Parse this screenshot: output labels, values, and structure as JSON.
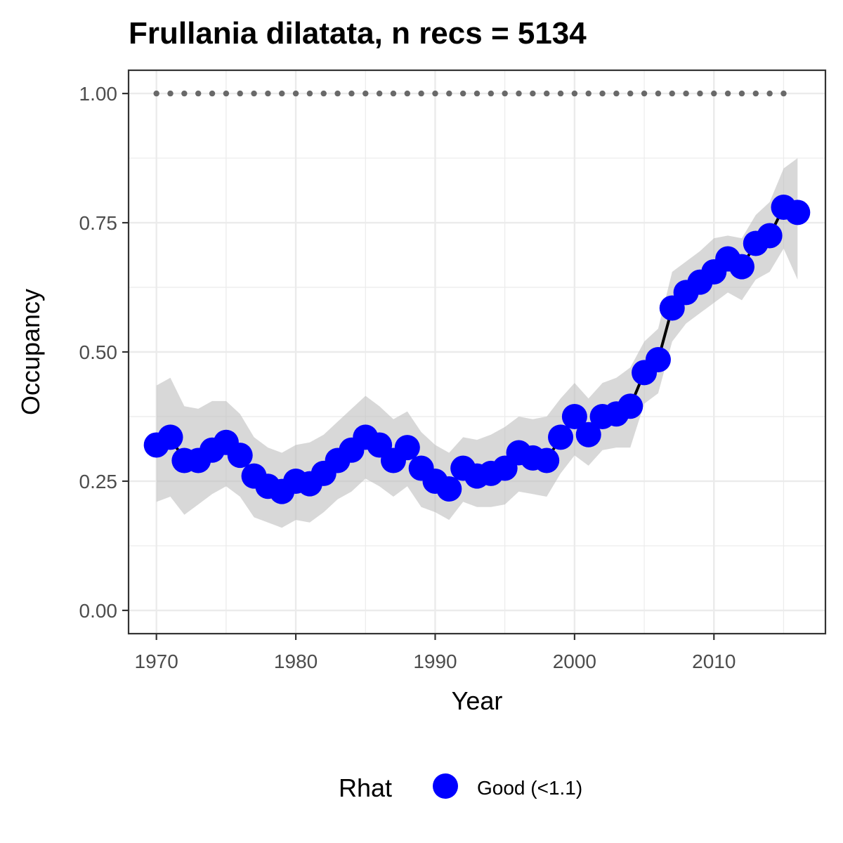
{
  "chart_data": {
    "type": "line",
    "title": "Frullania dilatata, n recs = 5134",
    "xlabel": "Year",
    "ylabel": "Occupancy",
    "xlim": [
      1968,
      2018
    ],
    "ylim": [
      -0.045,
      1.045
    ],
    "x_ticks": [
      1970,
      1980,
      1990,
      2000,
      2010
    ],
    "x_tick_labels": [
      "1970",
      "1980",
      "1990",
      "2000",
      "2010"
    ],
    "y_ticks": [
      0,
      0.25,
      0.5,
      0.75,
      1.0
    ],
    "y_tick_labels": [
      "0.00",
      "0.25",
      "0.50",
      "0.75",
      "1.00"
    ],
    "grid": true,
    "x": [
      1970,
      1971,
      1972,
      1973,
      1974,
      1975,
      1976,
      1977,
      1978,
      1979,
      1980,
      1981,
      1982,
      1983,
      1984,
      1985,
      1986,
      1987,
      1988,
      1989,
      1990,
      1991,
      1992,
      1993,
      1994,
      1995,
      1996,
      1997,
      1998,
      1999,
      2000,
      2001,
      2002,
      2003,
      2004,
      2005,
      2006,
      2007,
      2008,
      2009,
      2010,
      2011,
      2012,
      2013,
      2014,
      2015,
      2016
    ],
    "series": [
      {
        "values": [
          0.32,
          0.335,
          0.29,
          0.29,
          0.31,
          0.325,
          0.3,
          0.26,
          0.24,
          0.23,
          0.25,
          0.245,
          0.265,
          0.29,
          0.31,
          0.335,
          0.32,
          0.29,
          0.315,
          0.275,
          0.25,
          0.235,
          0.275,
          0.26,
          0.265,
          0.275,
          0.305,
          0.295,
          0.29,
          0.335,
          0.375,
          0.34,
          0.375,
          0.38,
          0.395,
          0.46,
          0.485,
          0.585,
          0.615,
          0.635,
          0.655,
          0.68,
          0.665,
          0.71,
          0.725,
          0.78,
          0.77
        ],
        "lower": [
          0.21,
          0.22,
          0.185,
          0.205,
          0.225,
          0.24,
          0.22,
          0.18,
          0.17,
          0.16,
          0.175,
          0.17,
          0.19,
          0.215,
          0.23,
          0.255,
          0.24,
          0.22,
          0.24,
          0.2,
          0.19,
          0.175,
          0.21,
          0.2,
          0.2,
          0.205,
          0.23,
          0.225,
          0.22,
          0.265,
          0.3,
          0.28,
          0.31,
          0.315,
          0.315,
          0.4,
          0.42,
          0.52,
          0.555,
          0.575,
          0.595,
          0.615,
          0.6,
          0.64,
          0.655,
          0.7,
          0.64
        ],
        "upper": [
          0.435,
          0.45,
          0.395,
          0.39,
          0.405,
          0.405,
          0.38,
          0.335,
          0.315,
          0.305,
          0.32,
          0.325,
          0.34,
          0.365,
          0.39,
          0.415,
          0.395,
          0.37,
          0.385,
          0.345,
          0.32,
          0.305,
          0.335,
          0.33,
          0.34,
          0.355,
          0.375,
          0.37,
          0.375,
          0.41,
          0.44,
          0.41,
          0.44,
          0.45,
          0.47,
          0.52,
          0.545,
          0.655,
          0.675,
          0.695,
          0.72,
          0.725,
          0.72,
          0.765,
          0.79,
          0.855,
          0.875
        ],
        "color": "#0000ff"
      }
    ],
    "reference_line": {
      "y": 1.0,
      "x_from": 1970,
      "x_to": 2015,
      "style": "dotted",
      "color": "#696969"
    },
    "ribbon_color": "#bebebe",
    "line_color": "#000000",
    "legend": {
      "title": "Rhat",
      "entries": [
        {
          "label": "Good (<1.1)",
          "color": "#0000ff"
        }
      ],
      "position": "bottom"
    }
  }
}
